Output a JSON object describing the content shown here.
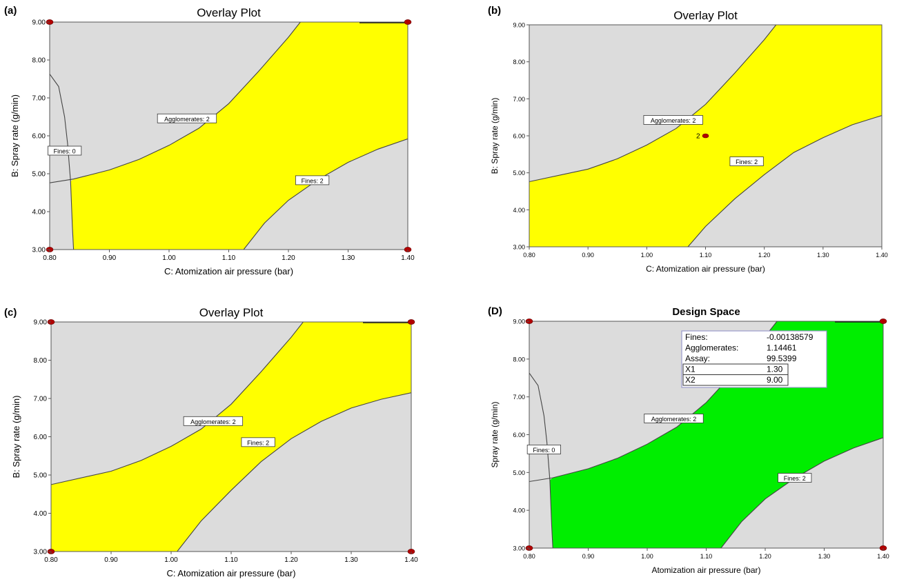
{
  "colors": {
    "background": "#ffffff",
    "gray_region": "#dcdcdc",
    "yellow_region": "#ffff00",
    "green_region": "#00ee00",
    "contour": "#444444",
    "design_point": "#b30000"
  },
  "chart_data": [
    {
      "panel_label": "(a)",
      "type": "area",
      "subtype": "contour-overlay",
      "title": "Overlay Plot",
      "title_bold": false,
      "xlabel": "C: Atomization air pressure (bar)",
      "ylabel": "B: Spray rate (g/min)",
      "xlim": [
        0.8,
        1.4
      ],
      "ylim": [
        3.0,
        9.0
      ],
      "xticks": [
        "0.80",
        "0.90",
        "1.00",
        "1.10",
        "1.20",
        "1.30",
        "1.40"
      ],
      "yticks": [
        "3.00",
        "4.00",
        "5.00",
        "6.00",
        "7.00",
        "8.00",
        "9.00"
      ],
      "fill": "yellow",
      "corner_points": true,
      "contours": [
        {
          "name": "Agglomerates: 2",
          "label_at": [
            1.03,
            6.45
          ],
          "points": [
            [
              0.8,
              4.76
            ],
            [
              0.84,
              4.86
            ],
            [
              0.9,
              5.1
            ],
            [
              0.95,
              5.38
            ],
            [
              1.0,
              5.75
            ],
            [
              1.05,
              6.2
            ],
            [
              1.1,
              6.85
            ],
            [
              1.15,
              7.7
            ],
            [
              1.2,
              8.6
            ],
            [
              1.22,
              9.0
            ]
          ]
        },
        {
          "name": "Fines: 2",
          "label_at": [
            1.24,
            4.82
          ],
          "points": [
            [
              1.125,
              3.0
            ],
            [
              1.16,
              3.7
            ],
            [
              1.2,
              4.3
            ],
            [
              1.25,
              4.85
            ],
            [
              1.3,
              5.3
            ],
            [
              1.35,
              5.65
            ],
            [
              1.4,
              5.92
            ]
          ]
        },
        {
          "name": "Fines: 0",
          "label_at": [
            0.825,
            5.6
          ],
          "points": [
            [
              0.8,
              7.63
            ],
            [
              0.815,
              7.3
            ],
            [
              0.825,
              6.5
            ],
            [
              0.83,
              5.8
            ],
            [
              0.835,
              4.8
            ],
            [
              0.838,
              3.6
            ],
            [
              0.84,
              3.0
            ]
          ]
        }
      ],
      "design_point": null
    },
    {
      "panel_label": "(b)",
      "type": "area",
      "subtype": "contour-overlay",
      "title": "Overlay Plot",
      "title_bold": false,
      "xlabel": "C: Atomization air pressure (bar)",
      "ylabel": "B: Spray rate (g/min)",
      "xlim": [
        0.8,
        1.4
      ],
      "ylim": [
        3.0,
        9.0
      ],
      "xticks": [
        "0.80",
        "0.90",
        "1.00",
        "1.10",
        "1.20",
        "1.30",
        "1.40"
      ],
      "yticks": [
        "3.00",
        "4.00",
        "5.00",
        "6.00",
        "7.00",
        "8.00",
        "9.00"
      ],
      "fill": "yellow",
      "corner_points": false,
      "contours": [
        {
          "name": "Agglomerates: 2",
          "label_at": [
            1.045,
            6.42
          ],
          "points": [
            [
              0.8,
              4.76
            ],
            [
              0.9,
              5.1
            ],
            [
              0.95,
              5.38
            ],
            [
              1.0,
              5.75
            ],
            [
              1.05,
              6.2
            ],
            [
              1.1,
              6.85
            ],
            [
              1.15,
              7.7
            ],
            [
              1.2,
              8.6
            ],
            [
              1.22,
              9.0
            ]
          ]
        },
        {
          "name": "Fines: 2",
          "label_at": [
            1.17,
            5.3
          ],
          "points": [
            [
              1.07,
              3.0
            ],
            [
              1.1,
              3.55
            ],
            [
              1.15,
              4.3
            ],
            [
              1.2,
              4.95
            ],
            [
              1.25,
              5.55
            ],
            [
              1.3,
              5.95
            ],
            [
              1.35,
              6.3
            ],
            [
              1.4,
              6.55
            ]
          ]
        }
      ],
      "design_point": {
        "label": "2",
        "x": 1.1,
        "y": 6.0
      }
    },
    {
      "panel_label": "(c)",
      "type": "area",
      "subtype": "contour-overlay",
      "title": "Overlay Plot",
      "title_bold": false,
      "xlabel": "C: Atomization air pressure (bar)",
      "ylabel": "B: Spray rate (g/min)",
      "xlim": [
        0.8,
        1.4
      ],
      "ylim": [
        3.0,
        9.0
      ],
      "xticks": [
        "0.80",
        "0.90",
        "1.00",
        "1.10",
        "1.20",
        "1.30",
        "1.40"
      ],
      "yticks": [
        "3.00",
        "4.00",
        "5.00",
        "6.00",
        "7.00",
        "8.00",
        "9.00"
      ],
      "fill": "yellow",
      "corner_points": true,
      "contours": [
        {
          "name": "Agglomerates: 2",
          "label_at": [
            1.07,
            6.4
          ],
          "points": [
            [
              0.8,
              4.75
            ],
            [
              0.9,
              5.1
            ],
            [
              0.95,
              5.38
            ],
            [
              1.0,
              5.75
            ],
            [
              1.05,
              6.2
            ],
            [
              1.1,
              6.85
            ],
            [
              1.15,
              7.7
            ],
            [
              1.2,
              8.6
            ],
            [
              1.22,
              9.0
            ]
          ]
        },
        {
          "name": "Fines: 2",
          "label_at": [
            1.145,
            5.85
          ],
          "points": [
            [
              1.01,
              3.0
            ],
            [
              1.05,
              3.8
            ],
            [
              1.1,
              4.6
            ],
            [
              1.15,
              5.35
            ],
            [
              1.2,
              5.95
            ],
            [
              1.25,
              6.4
            ],
            [
              1.3,
              6.75
            ],
            [
              1.35,
              6.98
            ],
            [
              1.4,
              7.15
            ]
          ]
        }
      ],
      "design_point": null
    },
    {
      "panel_label": "(D)",
      "type": "area",
      "subtype": "contour-overlay",
      "title": "Design Space",
      "title_bold": true,
      "xlabel": "Atomization air pressure (bar)",
      "ylabel": "Spray rate (g/min)",
      "xlim": [
        0.8,
        1.4
      ],
      "ylim": [
        3.0,
        9.0
      ],
      "xticks": [
        "0.80",
        "0.90",
        "1.00",
        "1.10",
        "1.20",
        "1.30",
        "1.40"
      ],
      "yticks": [
        "3.00",
        "4.00",
        "5.00",
        "6.00",
        "7.00",
        "8.00",
        "9.00"
      ],
      "fill": "green",
      "corner_points": true,
      "contours": [
        {
          "name": "Agglomerates: 2",
          "label_at": [
            1.045,
            6.42
          ],
          "points": [
            [
              0.8,
              4.76
            ],
            [
              0.84,
              4.86
            ],
            [
              0.9,
              5.1
            ],
            [
              0.95,
              5.38
            ],
            [
              1.0,
              5.75
            ],
            [
              1.05,
              6.2
            ],
            [
              1.1,
              6.85
            ],
            [
              1.15,
              7.7
            ],
            [
              1.2,
              8.6
            ],
            [
              1.22,
              9.0
            ]
          ]
        },
        {
          "name": "Fines: 2",
          "label_at": [
            1.25,
            4.85
          ],
          "points": [
            [
              1.125,
              3.0
            ],
            [
              1.16,
              3.7
            ],
            [
              1.2,
              4.3
            ],
            [
              1.25,
              4.85
            ],
            [
              1.3,
              5.3
            ],
            [
              1.35,
              5.65
            ],
            [
              1.4,
              5.92
            ]
          ]
        },
        {
          "name": "Fines: 0",
          "label_at": [
            0.825,
            5.6
          ],
          "points": [
            [
              0.8,
              7.63
            ],
            [
              0.815,
              7.3
            ],
            [
              0.825,
              6.5
            ],
            [
              0.83,
              5.8
            ],
            [
              0.835,
              4.8
            ],
            [
              0.838,
              3.6
            ],
            [
              0.84,
              3.0
            ]
          ]
        }
      ],
      "design_point": null,
      "info_box": {
        "rows": [
          {
            "name": "Fines:",
            "value": "-0.00138579"
          },
          {
            "name": "Agglomerates:",
            "value": "1.14461"
          },
          {
            "name": "Assay:",
            "value": "99.5399"
          },
          {
            "name": "X1",
            "value": "1.30"
          },
          {
            "name": "X2",
            "value": "9.00"
          }
        ]
      }
    }
  ]
}
